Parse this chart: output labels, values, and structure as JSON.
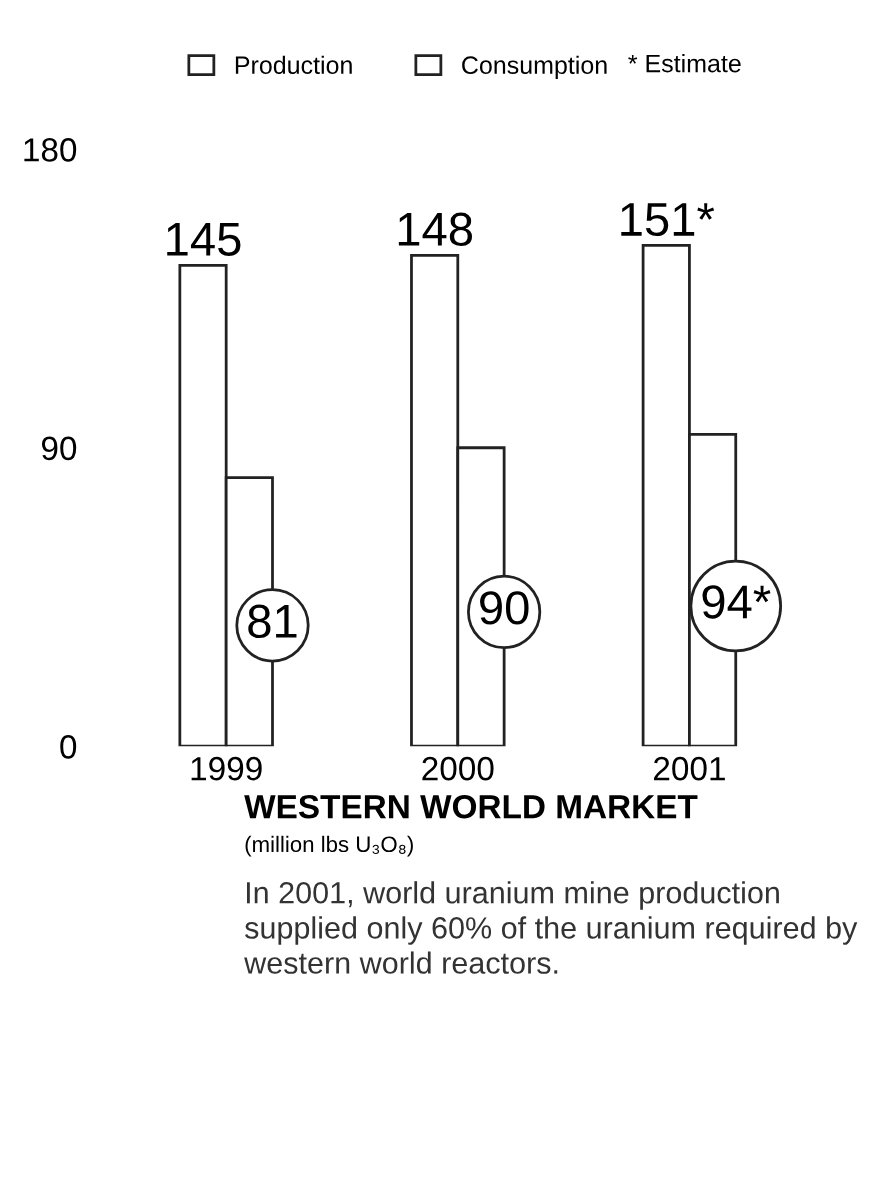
{
  "chart_data": {
    "type": "bar",
    "title": "WESTERN WORLD MARKET",
    "subtitle": "(million lbs U₃O₈)",
    "categories": [
      "1999",
      "2000",
      "2001"
    ],
    "series": [
      {
        "name": "Consumption",
        "color": "#ffffff",
        "values": [
          145,
          148,
          151
        ],
        "value_labels": [
          "145",
          "148",
          "151*"
        ]
      },
      {
        "name": "Production",
        "color": "#ffffff",
        "values": [
          81,
          90,
          94
        ],
        "value_labels": [
          "81",
          "90",
          "94*"
        ]
      }
    ],
    "ylim": [
      0,
      180
    ],
    "yticks": [
      0,
      90,
      180
    ],
    "grid": false,
    "legend": "top",
    "annotations": [
      "* Estimate",
      "In 2001, world uranium mine production supplied only 60% of the uranium required by western world reactors."
    ]
  }
}
